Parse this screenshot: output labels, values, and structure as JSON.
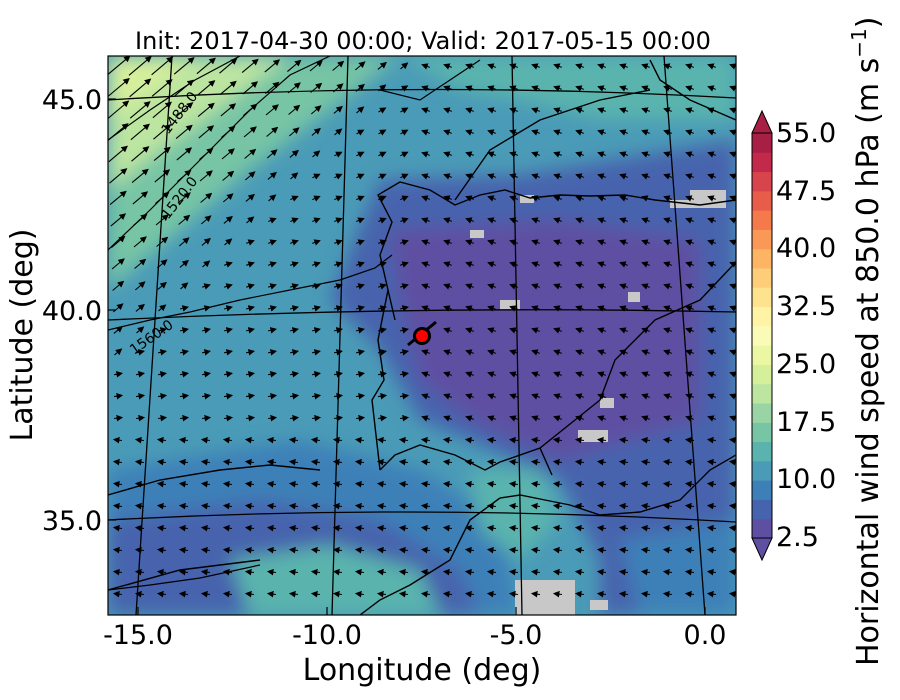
{
  "title": "Init: 2017-04-30 00:00; Valid: 2017-05-15 00:00",
  "axes": {
    "xlabel": "Longitude (deg)",
    "ylabel": "Latitude (deg)",
    "xticks": [
      "-15.0",
      "-10.0",
      "-5.0",
      "0.0"
    ],
    "yticks": [
      "45.0",
      "40.0",
      "35.0"
    ]
  },
  "colorbar": {
    "title_main": "Horizontal wind speed at 850.0 hPa (m s",
    "title_exp": "−1",
    "title_end": ")",
    "ticks": [
      "55.0",
      "47.5",
      "40.0",
      "32.5",
      "25.0",
      "17.5",
      "10.0",
      "2.5"
    ],
    "min": 2.5,
    "max": 55.0,
    "step": 2.5,
    "extend": "both",
    "colors": [
      "#5e4fa2",
      "#4664ad",
      "#3d80b8",
      "#4a9bb7",
      "#5ab4ad",
      "#77c5a5",
      "#99d5a4",
      "#bce5a0",
      "#d6ef9b",
      "#ecf7a3",
      "#fbfbb8",
      "#fff3a5",
      "#fee38e",
      "#fdcd79",
      "#fdb463",
      "#f99857",
      "#f47a4b",
      "#e85d4a",
      "#d8444c",
      "#c3294a",
      "#a81f46"
    ]
  },
  "contours": {
    "field": "geopotential height",
    "labels": [
      "1488.0",
      "1520.0",
      "1560.0"
    ]
  },
  "marker": {
    "description": "site location",
    "lon": -7.7,
    "lat": 39.3,
    "fill": "#ff0000"
  },
  "colors": {
    "land_outline": "#000000",
    "missing": "#c8c8c8"
  }
}
